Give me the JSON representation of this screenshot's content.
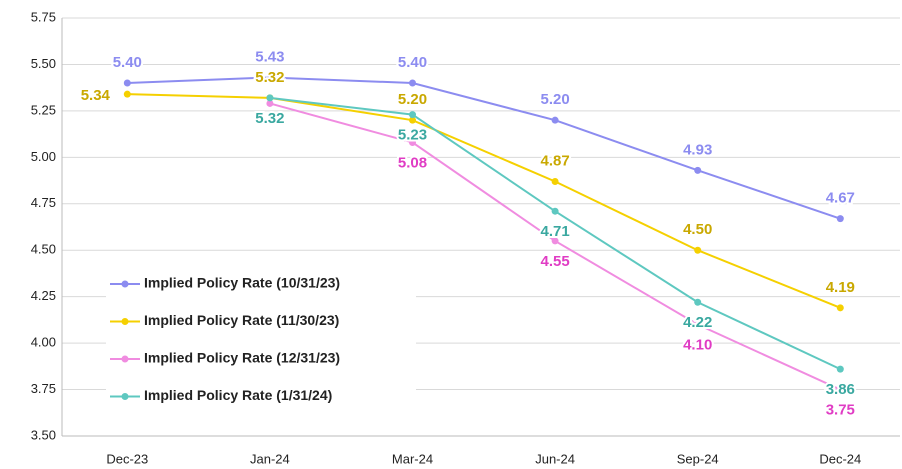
{
  "chart_data": {
    "type": "line",
    "categories": [
      "Dec-23",
      "Jan-24",
      "Mar-24",
      "Jun-24",
      "Sep-24",
      "Dec-24"
    ],
    "series": [
      {
        "name": "Implied Policy Rate (10/31/23)",
        "color": "#8c8cf0",
        "label_color": "#8c8cf0",
        "values": [
          5.4,
          5.43,
          5.4,
          5.2,
          4.93,
          4.67
        ],
        "value_labels": [
          "5.40",
          "5.43",
          "5.40",
          "5.20",
          "4.93",
          "4.67"
        ]
      },
      {
        "name": "Implied Policy Rate (11/30/23)",
        "color": "#f5d000",
        "label_color": "#c9a800",
        "values": [
          5.34,
          5.32,
          5.2,
          4.87,
          4.5,
          4.19
        ],
        "value_labels": [
          "5.34",
          "5.32",
          "5.20",
          "4.87",
          "4.50",
          "4.19"
        ]
      },
      {
        "name": "Implied Policy Rate (12/31/23)",
        "color": "#f08ce0",
        "label_color": "#e03cc4",
        "values": [
          null,
          5.29,
          5.08,
          4.55,
          4.1,
          3.75
        ],
        "value_labels": [
          null,
          null,
          "5.08",
          "4.55",
          "4.10",
          "3.75"
        ]
      },
      {
        "name": "Implied Policy Rate (1/31/24)",
        "color": "#5ec8c0",
        "label_color": "#3aa8a0",
        "values": [
          null,
          5.32,
          5.23,
          4.71,
          4.22,
          3.86
        ],
        "value_labels": [
          null,
          "5.32",
          "5.23",
          "4.71",
          "4.22",
          "3.86"
        ]
      }
    ],
    "ylim": [
      3.5,
      5.75
    ],
    "yticks": [
      {
        "value": 3.5,
        "label": "3.50"
      },
      3.75,
      {
        "value": 4,
        "label": "4.00"
      },
      4.25,
      {
        "value": 4.5,
        "label": "4.50"
      },
      4.75,
      {
        "value": 5,
        "label": "5.00"
      },
      5.25,
      {
        "value": 5.5,
        "label": "5.50"
      },
      5.75
    ],
    "grid": true,
    "legend": "lower left"
  }
}
